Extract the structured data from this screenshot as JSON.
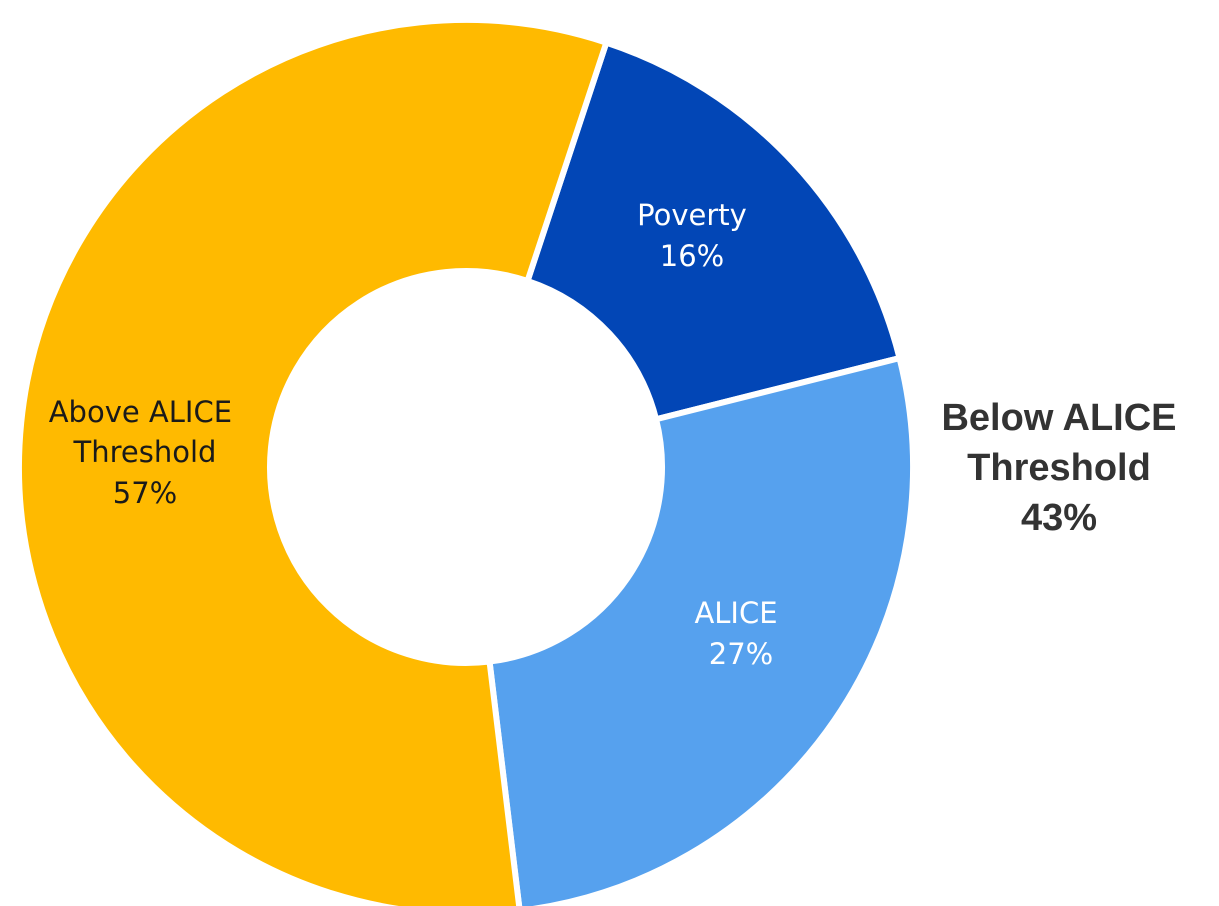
{
  "chart_data": {
    "type": "pie",
    "variant": "donut",
    "slices": [
      {
        "label": "Poverty",
        "pct_label": "16%",
        "value": 16,
        "color": "#0246B6",
        "text_color": "#FFFFFF"
      },
      {
        "label": "ALICE",
        "pct_label": "27%",
        "value": 27,
        "color": "#56A1EE",
        "text_color": "#FFFFFF"
      },
      {
        "label": "Above ALICE Threshold",
        "pct_label": "57%",
        "value": 57,
        "color": "#FFBA00",
        "text_color": "#1A1A1A"
      }
    ],
    "annotation": {
      "lines": [
        "Below ALICE",
        "Threshold",
        "43%"
      ],
      "value": 43
    },
    "legend": "none",
    "background": "#FFFFFF"
  }
}
